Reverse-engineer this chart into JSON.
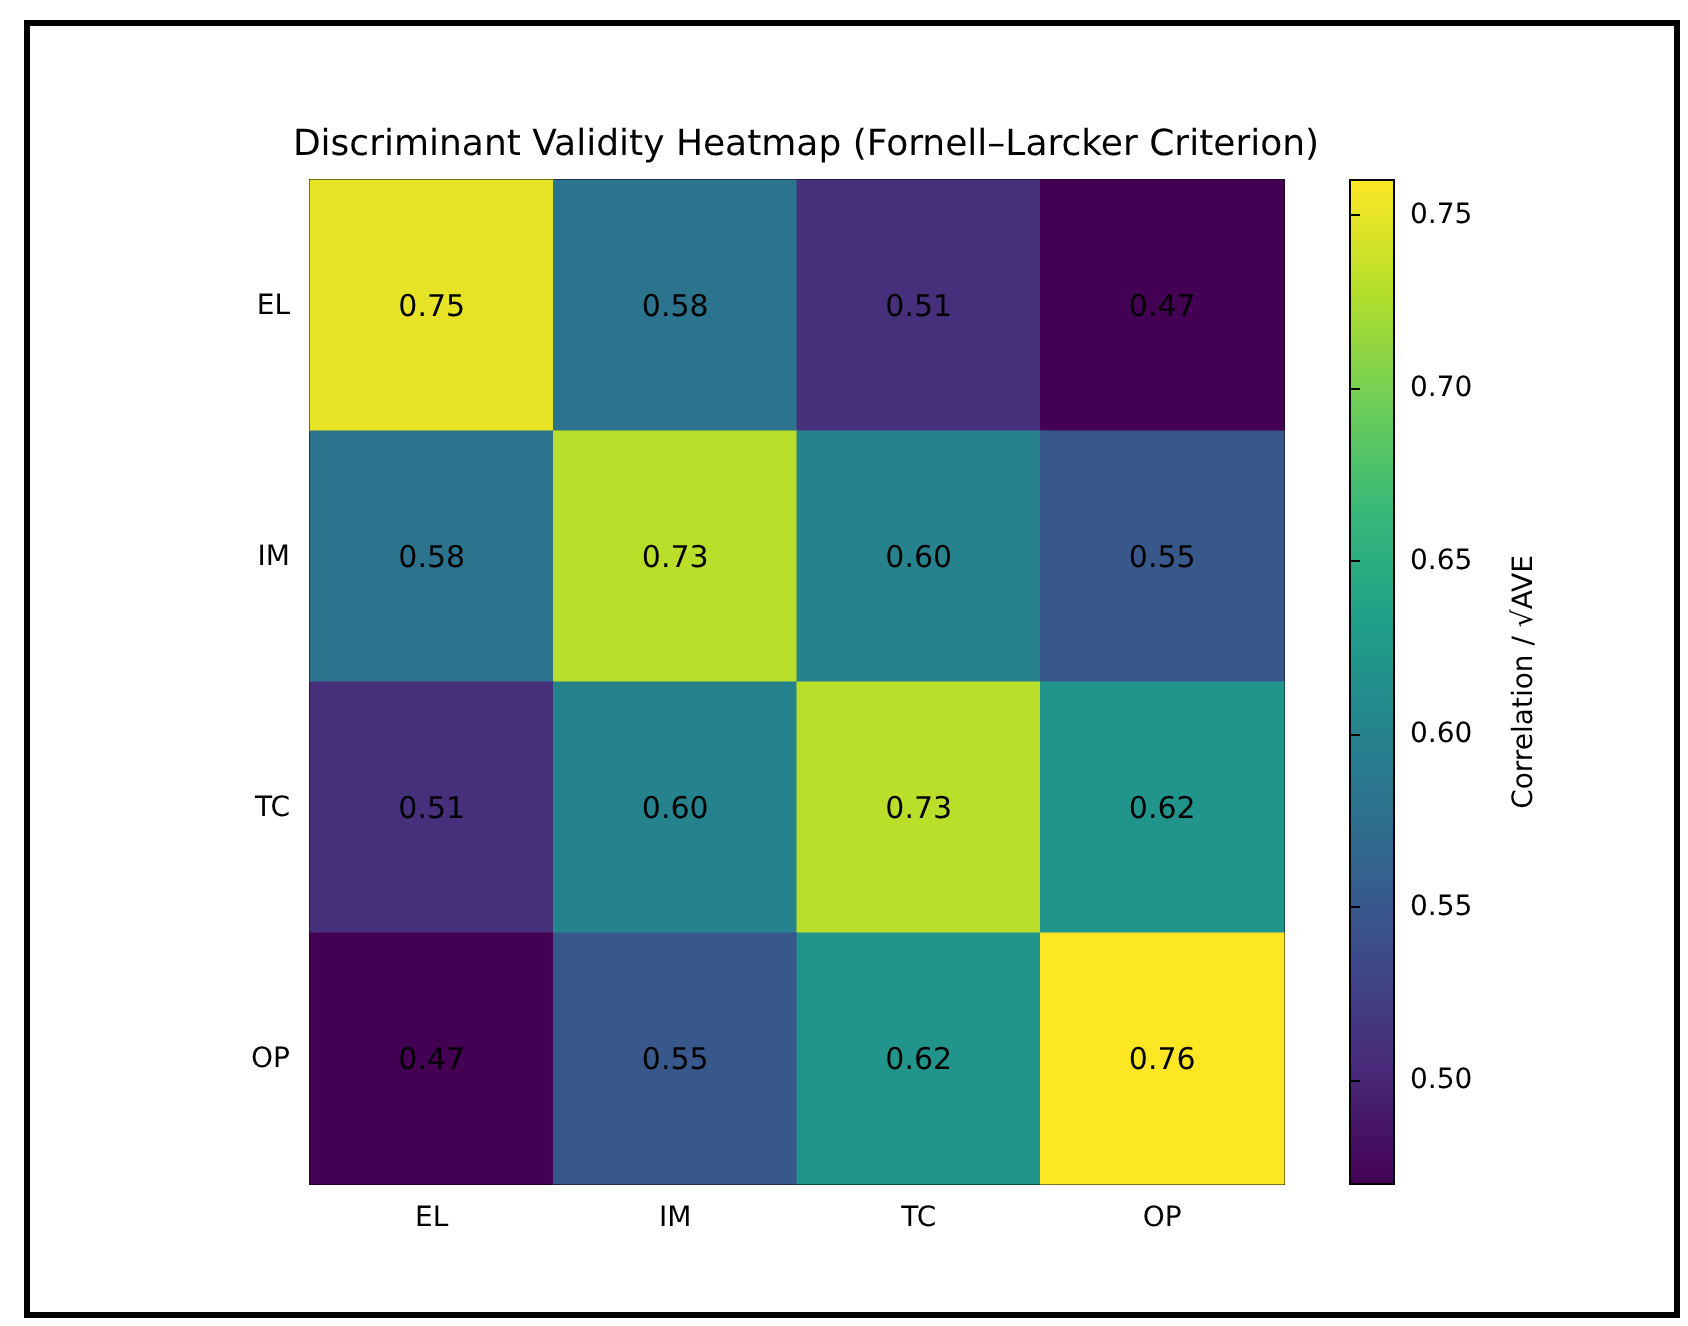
{
  "chart_data": {
    "type": "heatmap",
    "title": "Discriminant Validity Heatmap (Fornell–Larcker Criterion)",
    "clabel": "Correlation / √AVE",
    "categories": [
      "EL",
      "IM",
      "TC",
      "OP"
    ],
    "y_categories": [
      "EL",
      "IM",
      "TC",
      "OP"
    ],
    "cells": [
      [
        0.75,
        0.58,
        0.51,
        0.47
      ],
      [
        0.58,
        0.73,
        0.6,
        0.55
      ],
      [
        0.51,
        0.6,
        0.73,
        0.62
      ],
      [
        0.47,
        0.55,
        0.62,
        0.76
      ]
    ],
    "cell_labels": [
      [
        "0.75",
        "0.58",
        "0.51",
        "0.47"
      ],
      [
        "0.58",
        "0.73",
        "0.60",
        "0.55"
      ],
      [
        "0.51",
        "0.60",
        "0.73",
        "0.62"
      ],
      [
        "0.47",
        "0.55",
        "0.62",
        "0.76"
      ]
    ],
    "clim": [
      0.47,
      0.76
    ],
    "cticks": [
      {
        "value": 0.5,
        "label": "0.50"
      },
      0.55,
      {
        "value": 0.6,
        "label": "0.60"
      },
      0.65,
      {
        "value": 0.7,
        "label": "0.70"
      },
      0.75
    ]
  }
}
